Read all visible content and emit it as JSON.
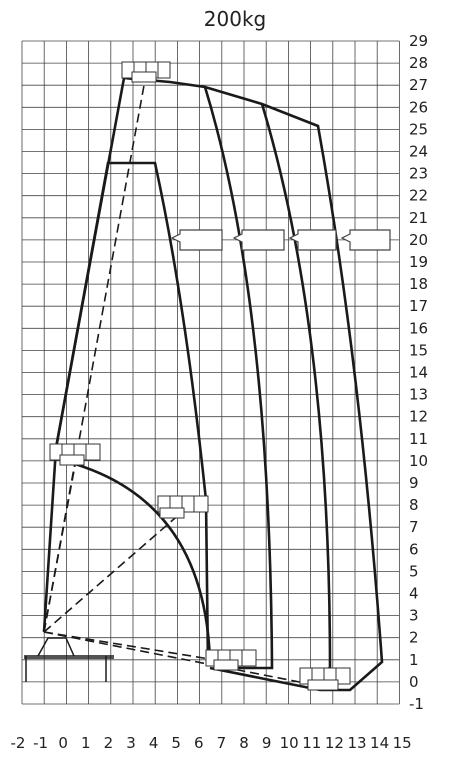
{
  "title": "200kg",
  "x_ticks": [
    "-2",
    "-1",
    "0",
    "1",
    "2",
    "3",
    "4",
    "5",
    "6",
    "7",
    "8",
    "9",
    "10",
    "11",
    "12",
    "13",
    "14",
    "15"
  ],
  "y_ticks": [
    "-1",
    "0",
    "1",
    "2",
    "3",
    "4",
    "5",
    "6",
    "7",
    "8",
    "9",
    "10",
    "11",
    "12",
    "13",
    "14",
    "15",
    "16",
    "17",
    "18",
    "19",
    "20",
    "21",
    "22",
    "23",
    "24",
    "25",
    "26",
    "27",
    "28",
    "29"
  ],
  "colors": {
    "grid": "#444444",
    "line": "#1a1a1a",
    "background": "#ffffff"
  }
}
